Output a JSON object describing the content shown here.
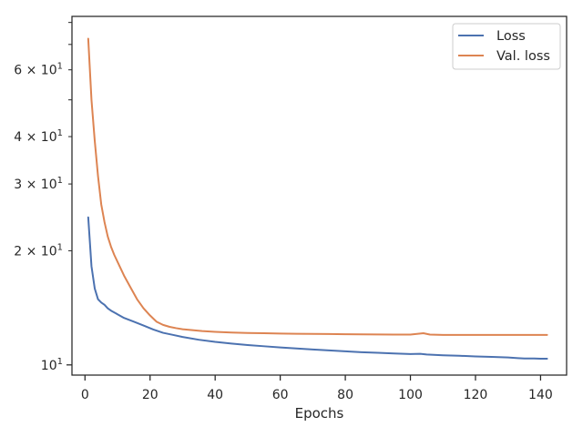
{
  "chart_data": {
    "type": "line",
    "title": "",
    "xlabel": "Epochs",
    "ylabel": "",
    "xlim": [
      -4,
      148
    ],
    "ylim": [
      9.4,
      83
    ],
    "yscale": "log",
    "grid": false,
    "legend_position": "top-right",
    "x_ticks": [
      {
        "value": 0,
        "label": "0"
      },
      {
        "value": 20,
        "label": "20"
      },
      {
        "value": 40,
        "label": "40"
      },
      {
        "value": 60,
        "label": "60"
      },
      {
        "value": 80,
        "label": "80"
      },
      {
        "value": 100,
        "label": "100"
      },
      {
        "value": 120,
        "label": "120"
      },
      {
        "value": 140,
        "label": "140"
      }
    ],
    "y_ticks_major": [
      {
        "value": 10,
        "base": "10",
        "exp": "1"
      }
    ],
    "y_ticks_minor": [
      {
        "value": 20,
        "coef": "2",
        "base": "10",
        "exp": "1"
      },
      {
        "value": 30,
        "coef": "3",
        "base": "10",
        "exp": "1"
      },
      {
        "value": 40,
        "coef": "4",
        "base": "10",
        "exp": "1"
      },
      {
        "value": 60,
        "coef": "6",
        "base": "10",
        "exp": "1"
      }
    ],
    "y_ticks_minor_unlabeled": [
      50,
      70,
      80
    ],
    "series": [
      {
        "name": "Loss",
        "color": "#4c72b0",
        "x": [
          1,
          2,
          3,
          4,
          5,
          6,
          7,
          8,
          10,
          12,
          15,
          18,
          21,
          24,
          27,
          30,
          35,
          40,
          45,
          50,
          55,
          60,
          65,
          70,
          75,
          80,
          85,
          90,
          95,
          100,
          103,
          105,
          110,
          115,
          120,
          125,
          130,
          133,
          135,
          138,
          140,
          142
        ],
        "y": [
          24.5,
          18.2,
          15.9,
          14.9,
          14.6,
          14.4,
          14.1,
          13.9,
          13.6,
          13.3,
          13.0,
          12.7,
          12.4,
          12.15,
          12.0,
          11.85,
          11.65,
          11.5,
          11.38,
          11.28,
          11.2,
          11.12,
          11.05,
          10.98,
          10.92,
          10.86,
          10.8,
          10.76,
          10.72,
          10.68,
          10.7,
          10.65,
          10.6,
          10.57,
          10.53,
          10.5,
          10.46,
          10.42,
          10.4,
          10.4,
          10.38,
          10.38
        ]
      },
      {
        "name": "Val. loss",
        "color": "#dd8452",
        "x": [
          1,
          2,
          3,
          4,
          5,
          6,
          7,
          8,
          9,
          10,
          12,
          14,
          16,
          18,
          20,
          22,
          24,
          26,
          28,
          30,
          33,
          36,
          40,
          45,
          50,
          55,
          60,
          65,
          70,
          75,
          80,
          85,
          90,
          95,
          100,
          104,
          106,
          110,
          115,
          120,
          125,
          130,
          135,
          140,
          142
        ],
        "y": [
          72.5,
          50.0,
          39.0,
          31.5,
          26.5,
          23.8,
          21.8,
          20.5,
          19.5,
          18.7,
          17.2,
          16.0,
          14.9,
          14.1,
          13.5,
          13.0,
          12.75,
          12.6,
          12.5,
          12.42,
          12.35,
          12.28,
          12.22,
          12.17,
          12.14,
          12.12,
          12.1,
          12.08,
          12.07,
          12.06,
          12.05,
          12.04,
          12.03,
          12.02,
          12.02,
          12.12,
          12.02,
          12.0,
          12.0,
          12.0,
          12.0,
          12.0,
          12.0,
          12.0,
          12.0
        ]
      }
    ]
  }
}
